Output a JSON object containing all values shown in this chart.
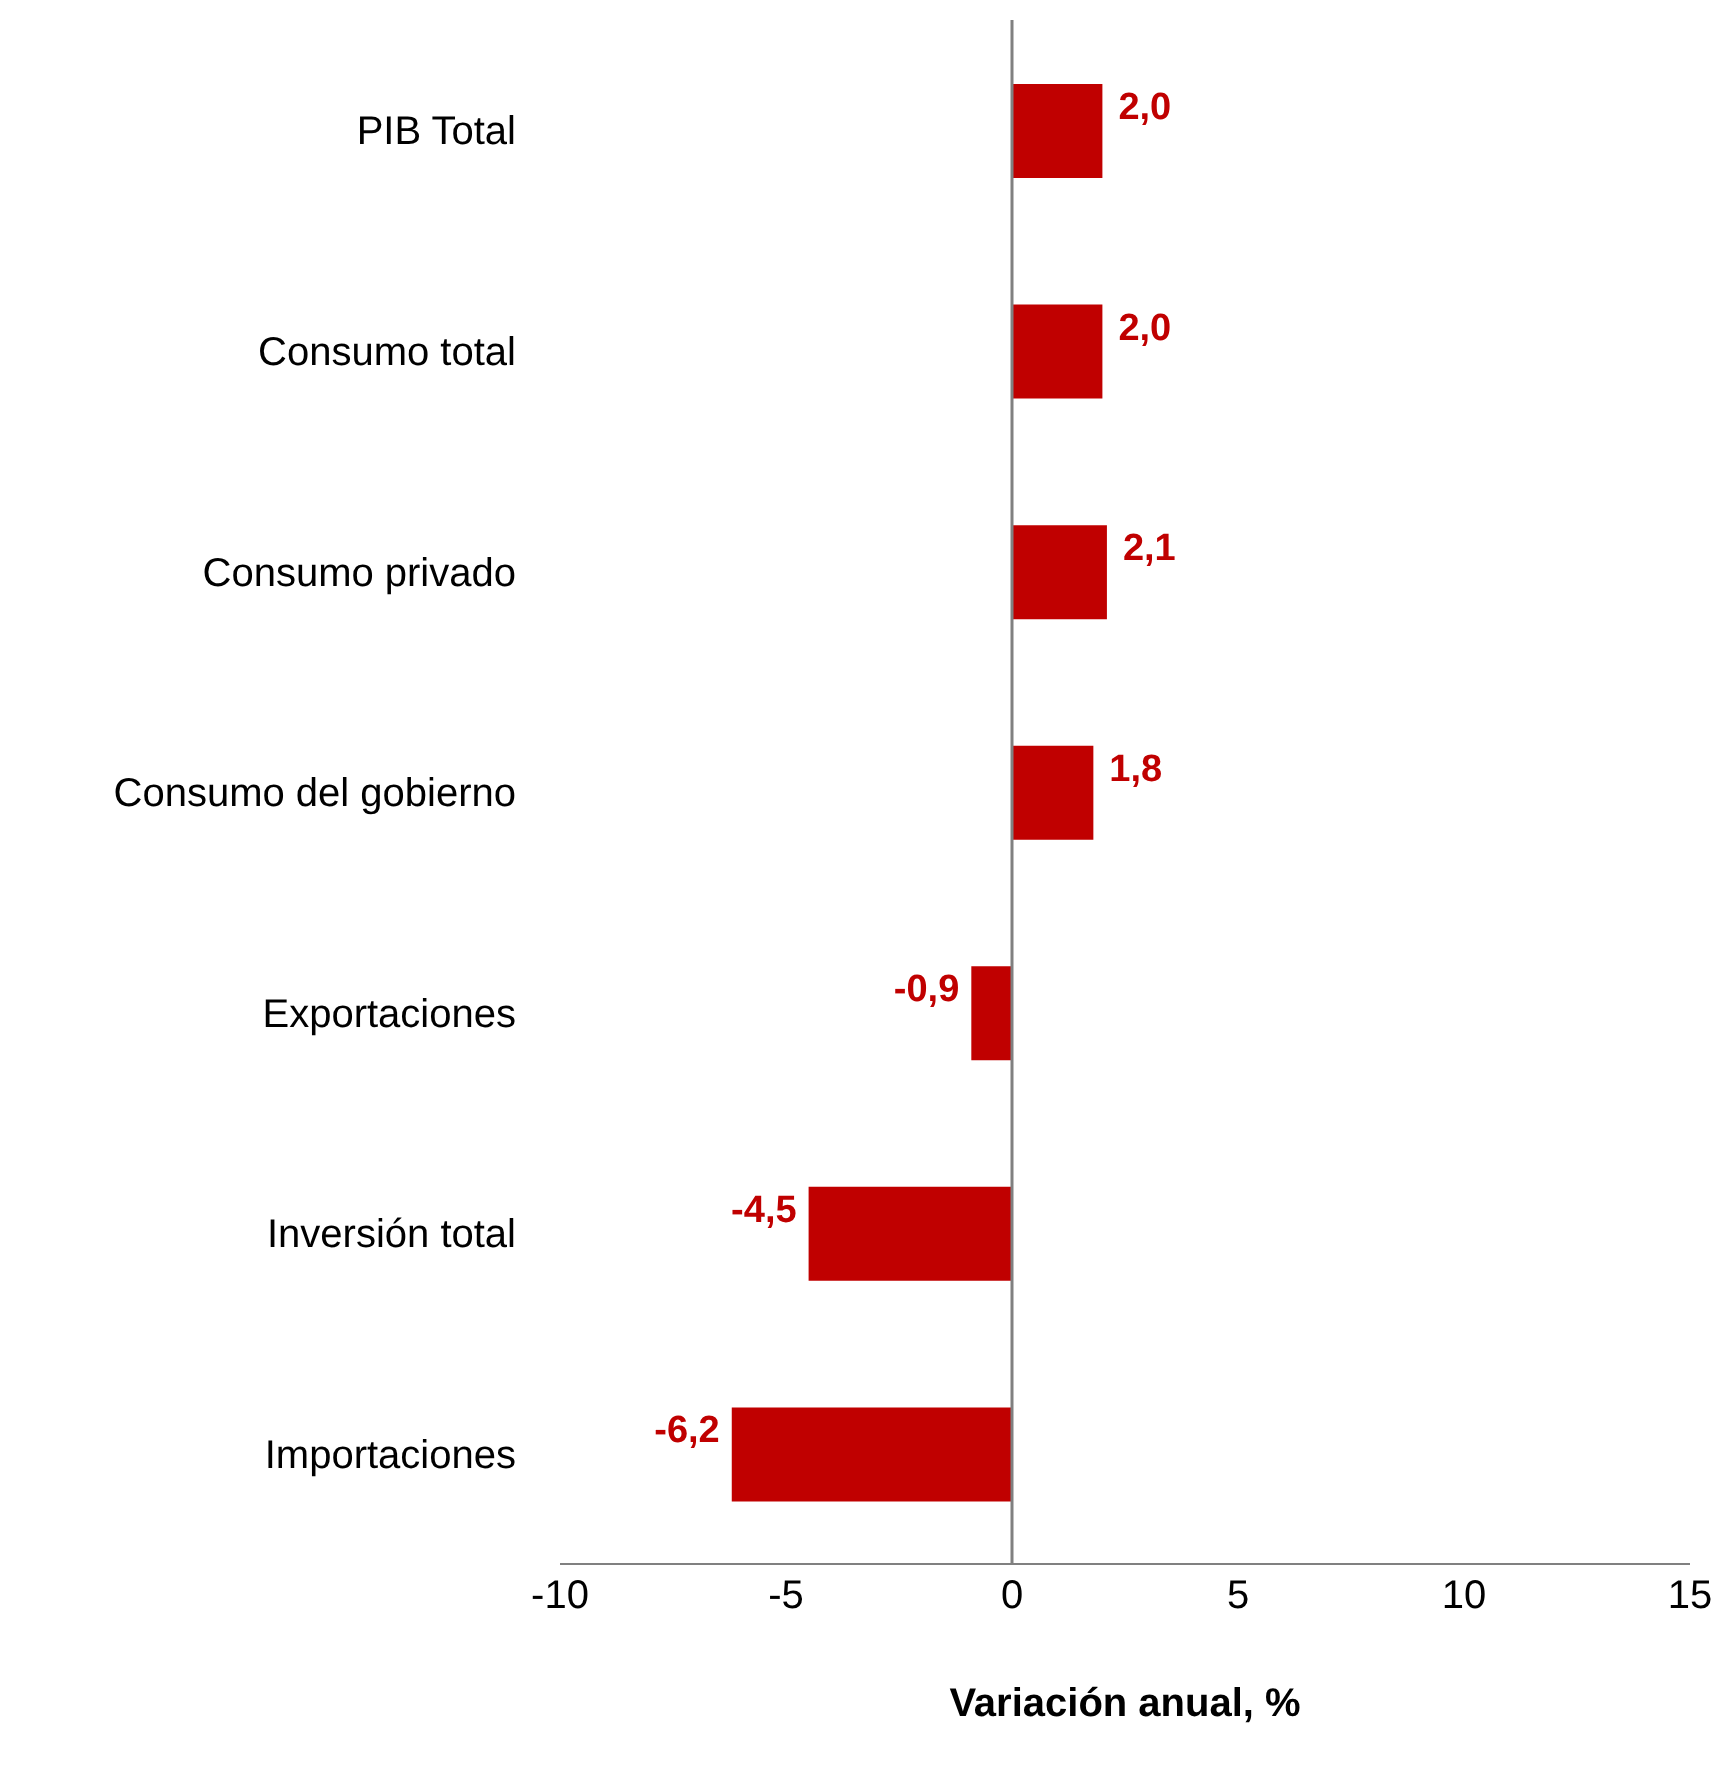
{
  "chart_data": {
    "type": "bar",
    "orientation": "horizontal",
    "xlabel": "Variación anual, %",
    "categories": [
      "PIB Total",
      "Consumo total",
      "Consumo privado",
      "Consumo del gobierno",
      "Exportaciones",
      "Inversión total",
      "Importaciones"
    ],
    "values": [
      2.0,
      2.0,
      2.1,
      1.8,
      -0.9,
      -4.5,
      -6.2
    ],
    "value_labels": [
      "2,0",
      "2,0",
      "2,1",
      "1,8",
      "-0,9",
      "-4,5",
      "-6,2"
    ],
    "color": "#c00000",
    "xlim": [
      -10,
      15
    ],
    "xticks": [
      -10,
      -5,
      0,
      5,
      10,
      15
    ],
    "ref_lines": [
      {
        "axis": "x",
        "value": 0,
        "color": "#808080"
      }
    ]
  }
}
